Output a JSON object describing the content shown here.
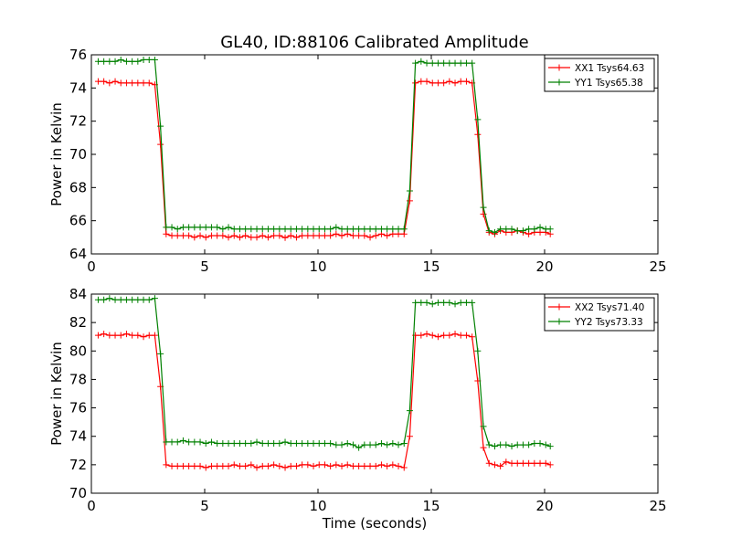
{
  "figure": {
    "title": "GL40, ID:88106 Calibrated Amplitude",
    "xlabel": "Time (seconds)"
  },
  "chart_data": [
    {
      "type": "line",
      "title": "GL40, ID:88106 Calibrated Amplitude",
      "xlabel": "",
      "ylabel": "Power in Kelvin",
      "xlim": [
        0,
        25
      ],
      "ylim": [
        64,
        76
      ],
      "xticks": [
        "0",
        "5",
        "10",
        "15",
        "20",
        "25"
      ],
      "yticks": [
        "64",
        "66",
        "68",
        "70",
        "72",
        "74",
        "76"
      ],
      "grid": false,
      "legend_position": "top-right",
      "series": [
        {
          "name": "XX1 Tsys64.63",
          "color": "#ff0000",
          "marker": "+",
          "x": [
            0.3,
            0.55,
            0.8,
            1.05,
            1.3,
            1.55,
            1.8,
            2.05,
            2.3,
            2.55,
            2.8,
            3.05,
            3.3,
            3.55,
            3.8,
            4.05,
            4.3,
            4.55,
            4.8,
            5.05,
            5.3,
            5.55,
            5.8,
            6.05,
            6.3,
            6.55,
            6.8,
            7.05,
            7.3,
            7.55,
            7.8,
            8.05,
            8.3,
            8.55,
            8.8,
            9.05,
            9.3,
            9.55,
            9.8,
            10.05,
            10.3,
            10.55,
            10.8,
            11.05,
            11.3,
            11.55,
            11.8,
            12.05,
            12.3,
            12.55,
            12.8,
            13.05,
            13.3,
            13.55,
            13.8,
            14.05,
            14.3,
            14.55,
            14.8,
            15.05,
            15.3,
            15.55,
            15.8,
            16.05,
            16.3,
            16.55,
            16.8,
            17.05,
            17.3,
            17.55,
            17.8,
            18.05,
            18.3,
            18.55,
            18.8,
            19.05,
            19.3,
            19.55,
            19.8,
            20.05,
            20.25
          ],
          "y": [
            74.4,
            74.4,
            74.3,
            74.4,
            74.3,
            74.3,
            74.3,
            74.3,
            74.3,
            74.3,
            74.2,
            70.6,
            65.2,
            65.1,
            65.1,
            65.1,
            65.1,
            65.0,
            65.1,
            65.0,
            65.1,
            65.1,
            65.1,
            65.0,
            65.1,
            65.0,
            65.1,
            65.0,
            65.0,
            65.1,
            65.0,
            65.1,
            65.1,
            64.98,
            65.1,
            65.0,
            65.1,
            65.1,
            65.1,
            65.1,
            65.1,
            65.1,
            65.2,
            65.1,
            65.2,
            65.1,
            65.1,
            65.1,
            65.0,
            65.1,
            65.2,
            65.1,
            65.2,
            65.2,
            65.2,
            67.2,
            74.3,
            74.4,
            74.4,
            74.3,
            74.3,
            74.3,
            74.4,
            74.3,
            74.4,
            74.4,
            74.3,
            71.2,
            66.4,
            65.3,
            65.2,
            65.4,
            65.3,
            65.3,
            65.4,
            65.3,
            65.2,
            65.3,
            65.3,
            65.3,
            65.2
          ]
        },
        {
          "name": "YY1 Tsys65.38",
          "color": "#008000",
          "marker": "+",
          "x": [
            0.3,
            0.55,
            0.8,
            1.05,
            1.3,
            1.55,
            1.8,
            2.05,
            2.3,
            2.55,
            2.8,
            3.05,
            3.3,
            3.55,
            3.8,
            4.05,
            4.3,
            4.55,
            4.8,
            5.05,
            5.3,
            5.55,
            5.8,
            6.05,
            6.3,
            6.55,
            6.8,
            7.05,
            7.3,
            7.55,
            7.8,
            8.05,
            8.3,
            8.55,
            8.8,
            9.05,
            9.3,
            9.55,
            9.8,
            10.05,
            10.3,
            10.55,
            10.8,
            11.05,
            11.3,
            11.55,
            11.8,
            12.05,
            12.3,
            12.55,
            12.8,
            13.05,
            13.3,
            13.55,
            13.8,
            14.05,
            14.3,
            14.55,
            14.8,
            15.05,
            15.3,
            15.55,
            15.8,
            16.05,
            16.3,
            16.55,
            16.8,
            17.05,
            17.3,
            17.55,
            17.8,
            18.05,
            18.3,
            18.55,
            18.8,
            19.05,
            19.3,
            19.55,
            19.8,
            20.05,
            20.25
          ],
          "y": [
            75.6,
            75.6,
            75.6,
            75.6,
            75.7,
            75.6,
            75.6,
            75.6,
            75.7,
            75.7,
            75.7,
            71.7,
            65.6,
            65.6,
            65.5,
            65.6,
            65.6,
            65.6,
            65.6,
            65.6,
            65.6,
            65.6,
            65.5,
            65.6,
            65.5,
            65.5,
            65.5,
            65.5,
            65.5,
            65.5,
            65.5,
            65.5,
            65.5,
            65.5,
            65.5,
            65.5,
            65.5,
            65.5,
            65.5,
            65.5,
            65.5,
            65.5,
            65.6,
            65.5,
            65.5,
            65.5,
            65.5,
            65.5,
            65.5,
            65.5,
            65.5,
            65.5,
            65.5,
            65.5,
            65.5,
            67.8,
            75.5,
            75.6,
            75.5,
            75.5,
            75.5,
            75.5,
            75.5,
            75.5,
            75.5,
            75.5,
            75.5,
            72.1,
            66.8,
            65.4,
            65.3,
            65.5,
            65.5,
            65.5,
            65.4,
            65.4,
            65.5,
            65.5,
            65.6,
            65.5,
            65.5
          ]
        }
      ]
    },
    {
      "type": "line",
      "title": "",
      "xlabel": "Time (seconds)",
      "ylabel": "Power in Kelvin",
      "xlim": [
        0,
        25
      ],
      "ylim": [
        70,
        84
      ],
      "xticks": [
        "0",
        "5",
        "10",
        "15",
        "20",
        "25"
      ],
      "yticks": [
        "70",
        "72",
        "74",
        "76",
        "78",
        "80",
        "82",
        "84"
      ],
      "grid": false,
      "legend_position": "top-right",
      "series": [
        {
          "name": "XX2 Tsys71.40",
          "color": "#ff0000",
          "marker": "+",
          "x": [
            0.3,
            0.55,
            0.8,
            1.05,
            1.3,
            1.55,
            1.8,
            2.05,
            2.3,
            2.55,
            2.8,
            3.05,
            3.3,
            3.55,
            3.8,
            4.05,
            4.3,
            4.55,
            4.8,
            5.05,
            5.3,
            5.55,
            5.8,
            6.05,
            6.3,
            6.55,
            6.8,
            7.05,
            7.3,
            7.55,
            7.8,
            8.05,
            8.3,
            8.55,
            8.8,
            9.05,
            9.3,
            9.55,
            9.8,
            10.05,
            10.3,
            10.55,
            10.8,
            11.05,
            11.3,
            11.55,
            11.8,
            12.05,
            12.3,
            12.55,
            12.8,
            13.05,
            13.3,
            13.55,
            13.8,
            14.05,
            14.3,
            14.55,
            14.8,
            15.05,
            15.3,
            15.55,
            15.8,
            16.05,
            16.3,
            16.55,
            16.8,
            17.05,
            17.3,
            17.55,
            17.8,
            18.05,
            18.3,
            18.55,
            18.8,
            19.05,
            19.3,
            19.55,
            19.8,
            20.05,
            20.25
          ],
          "y": [
            81.1,
            81.2,
            81.1,
            81.1,
            81.1,
            81.2,
            81.1,
            81.1,
            81.0,
            81.1,
            81.1,
            77.5,
            72.0,
            71.9,
            71.9,
            71.9,
            71.9,
            71.9,
            71.9,
            71.8,
            71.9,
            71.9,
            71.9,
            71.9,
            72.0,
            71.9,
            71.9,
            72.0,
            71.8,
            71.9,
            71.9,
            72.0,
            71.9,
            71.8,
            71.9,
            71.9,
            72.0,
            72.0,
            71.9,
            72.0,
            72.0,
            71.9,
            72.0,
            71.9,
            72.0,
            71.9,
            71.9,
            71.9,
            71.9,
            71.9,
            72.0,
            71.9,
            72.0,
            71.9,
            71.8,
            74.0,
            81.1,
            81.1,
            81.2,
            81.1,
            81.0,
            81.1,
            81.1,
            81.2,
            81.1,
            81.1,
            81.0,
            77.9,
            73.2,
            72.1,
            72.0,
            71.9,
            72.2,
            72.1,
            72.1,
            72.1,
            72.1,
            72.1,
            72.1,
            72.1,
            72.0
          ]
        },
        {
          "name": "YY2 Tsys73.33",
          "color": "#008000",
          "marker": "+",
          "x": [
            0.3,
            0.55,
            0.8,
            1.05,
            1.3,
            1.55,
            1.8,
            2.05,
            2.3,
            2.55,
            2.8,
            3.05,
            3.3,
            3.55,
            3.8,
            4.05,
            4.3,
            4.55,
            4.8,
            5.05,
            5.3,
            5.55,
            5.8,
            6.05,
            6.3,
            6.55,
            6.8,
            7.05,
            7.3,
            7.55,
            7.8,
            8.05,
            8.3,
            8.55,
            8.8,
            9.05,
            9.3,
            9.55,
            9.8,
            10.05,
            10.3,
            10.55,
            10.8,
            11.05,
            11.3,
            11.55,
            11.8,
            12.05,
            12.3,
            12.55,
            12.8,
            13.05,
            13.3,
            13.55,
            13.8,
            14.05,
            14.3,
            14.55,
            14.8,
            15.05,
            15.3,
            15.55,
            15.8,
            16.05,
            16.3,
            16.55,
            16.8,
            17.05,
            17.3,
            17.55,
            17.8,
            18.05,
            18.3,
            18.55,
            18.8,
            19.05,
            19.3,
            19.55,
            19.8,
            20.05,
            20.25
          ],
          "y": [
            83.6,
            83.6,
            83.7,
            83.6,
            83.6,
            83.6,
            83.6,
            83.6,
            83.6,
            83.6,
            83.7,
            79.8,
            73.6,
            73.6,
            73.6,
            73.7,
            73.6,
            73.6,
            73.6,
            73.5,
            73.6,
            73.5,
            73.5,
            73.5,
            73.5,
            73.5,
            73.5,
            73.5,
            73.6,
            73.5,
            73.5,
            73.5,
            73.5,
            73.6,
            73.5,
            73.5,
            73.5,
            73.5,
            73.5,
            73.5,
            73.5,
            73.5,
            73.4,
            73.4,
            73.5,
            73.4,
            73.2,
            73.4,
            73.4,
            73.4,
            73.5,
            73.4,
            73.5,
            73.4,
            73.5,
            75.8,
            83.4,
            83.4,
            83.4,
            83.3,
            83.4,
            83.4,
            83.4,
            83.3,
            83.4,
            83.4,
            83.4,
            80.0,
            74.7,
            73.4,
            73.3,
            73.4,
            73.4,
            73.3,
            73.4,
            73.4,
            73.4,
            73.5,
            73.5,
            73.4,
            73.3
          ]
        }
      ]
    }
  ]
}
